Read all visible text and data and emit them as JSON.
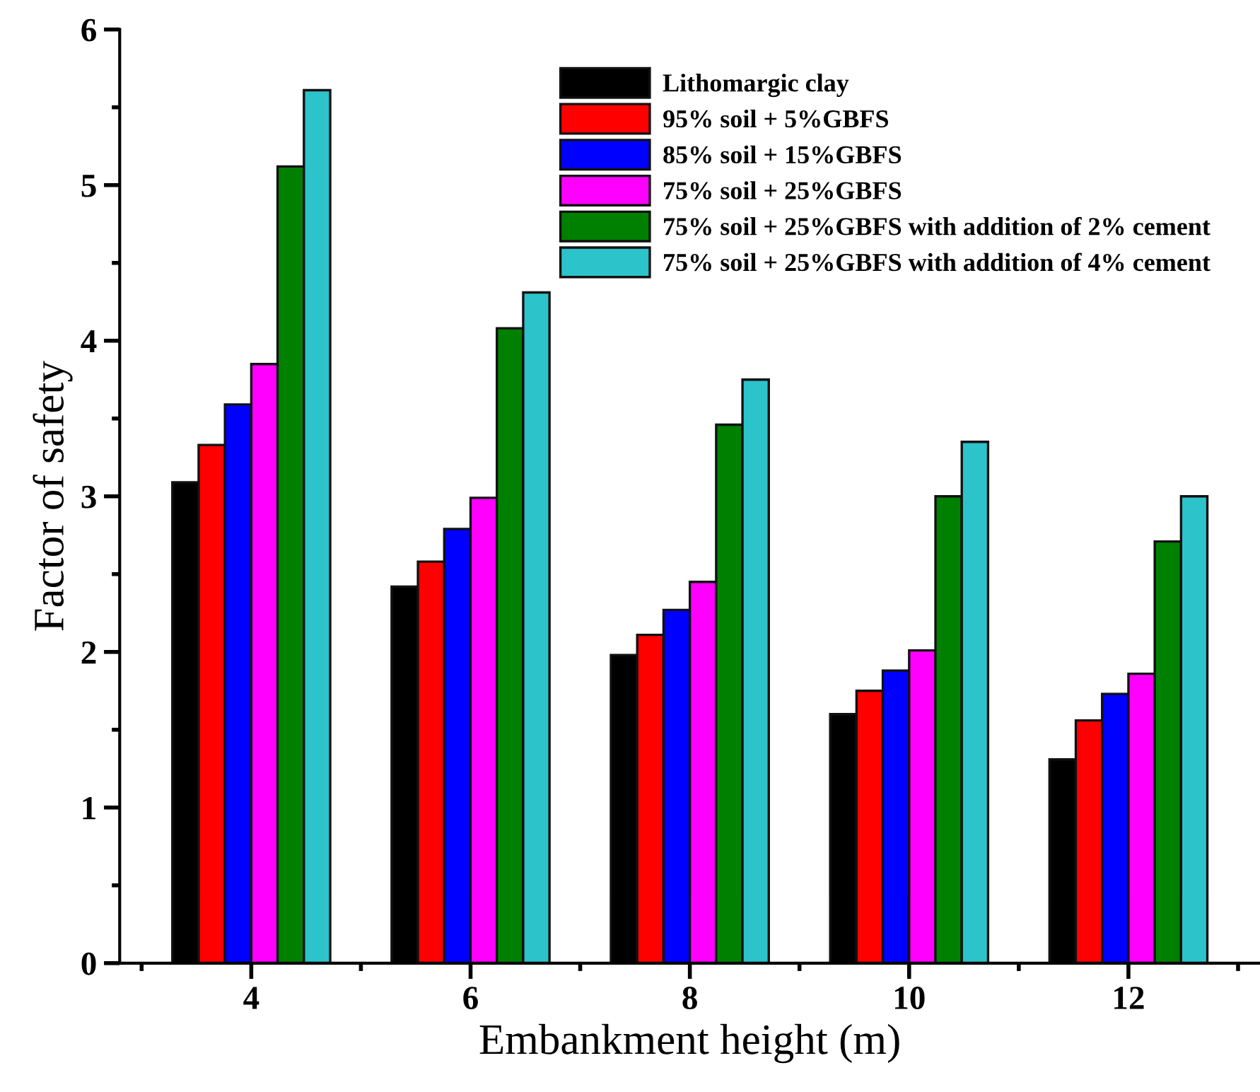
{
  "chart_data": {
    "type": "bar",
    "xlabel": "Embankment height (m)",
    "ylabel": "Factor of safety",
    "categories": [
      "4",
      "6",
      "8",
      "10",
      "12"
    ],
    "series": [
      {
        "name": "Lithomargic clay",
        "color": "#000000",
        "values": [
          3.09,
          2.42,
          1.98,
          1.6,
          1.31
        ]
      },
      {
        "name": "95% soil + 5%GBFS",
        "color": "#ff0000",
        "values": [
          3.33,
          2.58,
          2.11,
          1.75,
          1.56
        ]
      },
      {
        "name": "85% soil + 15%GBFS",
        "color": "#0000ff",
        "values": [
          3.59,
          2.79,
          2.27,
          1.88,
          1.73
        ]
      },
      {
        "name": "75% soil + 25%GBFS",
        "color": "#ff00ff",
        "values": [
          3.85,
          2.99,
          2.45,
          2.01,
          1.86
        ]
      },
      {
        "name": "75% soil + 25%GBFS with addition of 2% cement",
        "color": "#008000",
        "values": [
          5.12,
          4.08,
          3.46,
          3.0,
          2.71
        ]
      },
      {
        "name": "75% soil + 25%GBFS with addition of 4% cement",
        "color": "#2cc3cb",
        "values": [
          5.61,
          4.31,
          3.75,
          3.35,
          3.0
        ]
      }
    ],
    "ylim": [
      0,
      6
    ],
    "yticks": [
      0,
      1,
      2,
      3,
      4,
      5,
      6
    ],
    "grid": false,
    "legend": "top right"
  }
}
